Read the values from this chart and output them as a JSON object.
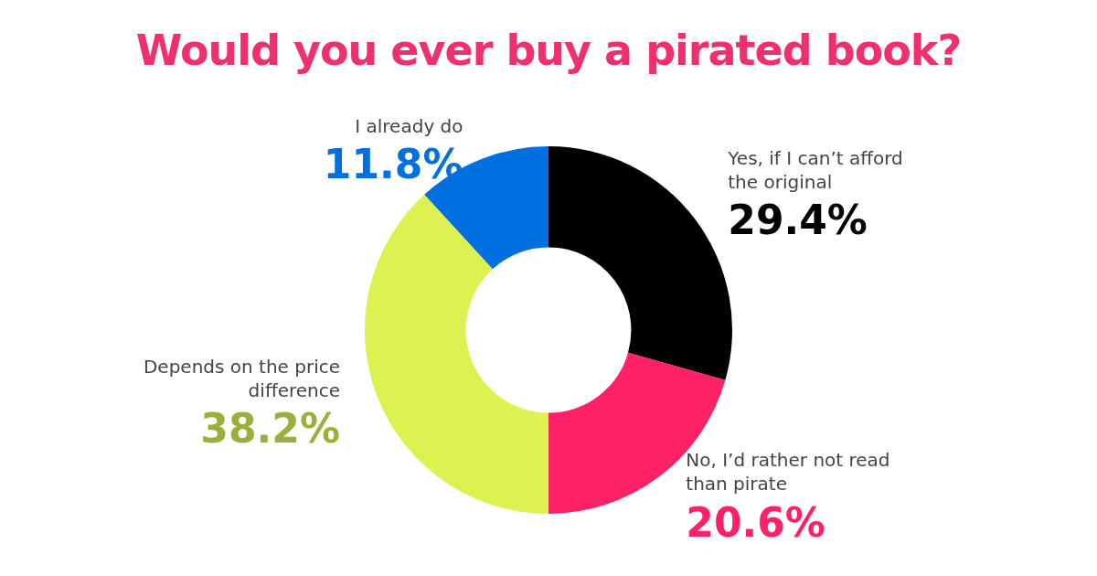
{
  "chart_data": {
    "type": "donut",
    "title": "Would you ever buy a pirated book?",
    "categories": [
      "Yes, if I can’t afford the original",
      "No, I’d rather not read than pirate",
      "Depends on the price difference",
      "I already do"
    ],
    "values": [
      29.4,
      20.6,
      38.2,
      11.8
    ],
    "colors": [
      "#000000",
      "#ff2168",
      "#dcf251",
      "#0070e0"
    ],
    "value_labels": [
      "29.4%",
      "20.6%",
      "38.2%",
      "11.8%"
    ],
    "legend": false
  }
}
